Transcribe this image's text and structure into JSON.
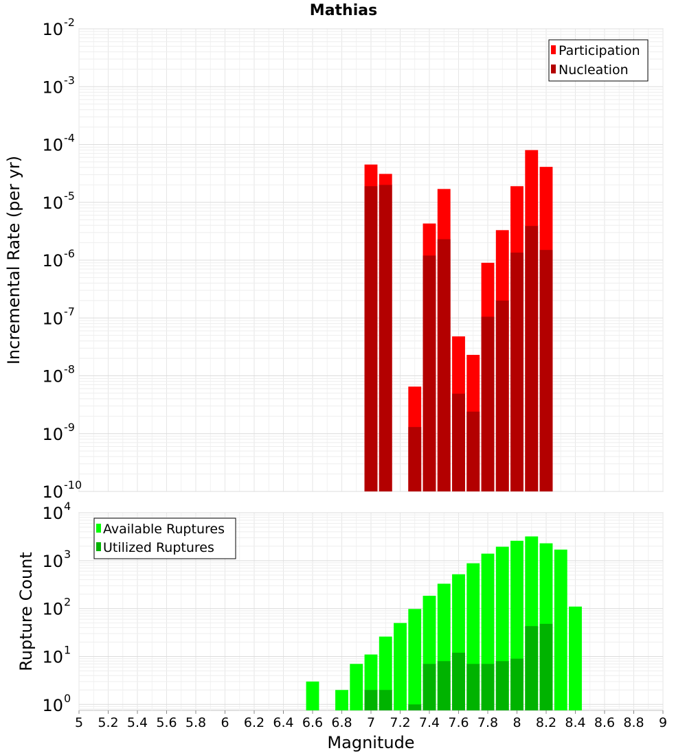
{
  "chart_data": [
    {
      "type": "bar",
      "title": "Mathias",
      "ylabel": "Incremental Rate (per yr)",
      "yscale": "log",
      "ylim": [
        1e-10,
        0.01
      ],
      "xlim": [
        5,
        9
      ],
      "bin_width": 0.1,
      "grid": true,
      "legend_position": "top-right",
      "y_tick_exponents": [
        "-10",
        "-9",
        "-8",
        "-7",
        "-6",
        "-5",
        "-4",
        "-3",
        "-2"
      ],
      "series": [
        {
          "name": "Participation",
          "color": "#ff0000",
          "x": [
            7.0,
            7.1,
            7.3,
            7.4,
            7.5,
            7.6,
            7.7,
            7.8,
            7.9,
            8.0,
            8.1,
            8.2
          ],
          "values": [
            4.5e-05,
            3.1e-05,
            6.5e-09,
            4.3e-06,
            1.7e-05,
            4.8e-08,
            2.3e-08,
            9e-07,
            3.3e-06,
            1.9e-05,
            8e-05,
            4.1e-05
          ]
        },
        {
          "name": "Nucleation",
          "color": "#b30000",
          "x": [
            7.0,
            7.1,
            7.3,
            7.4,
            7.5,
            7.6,
            7.7,
            7.8,
            7.9,
            8.0,
            8.1,
            8.2
          ],
          "values": [
            1.9e-05,
            2e-05,
            1.3e-09,
            1.2e-06,
            2.3e-06,
            4.9e-09,
            2.4e-09,
            1.05e-07,
            2e-07,
            1.35e-06,
            3.9e-06,
            1.5e-06
          ]
        }
      ]
    },
    {
      "type": "bar",
      "xlabel": "Magnitude",
      "ylabel": "Rupture Count",
      "yscale": "log",
      "ylim": [
        0.75,
        10000
      ],
      "xlim": [
        5,
        9
      ],
      "bin_width": 0.1,
      "grid": true,
      "legend_position": "top-left",
      "y_tick_exponents": [
        "0",
        "1",
        "2",
        "3",
        "4"
      ],
      "x_ticks": [
        "5",
        "5.2",
        "5.4",
        "5.6",
        "5.8",
        "6",
        "6.2",
        "6.4",
        "6.6",
        "6.8",
        "7",
        "7.2",
        "7.4",
        "7.6",
        "7.8",
        "8",
        "8.2",
        "8.4",
        "8.6",
        "8.8",
        "9"
      ],
      "series": [
        {
          "name": "Available Ruptures",
          "color": "#00ff00",
          "x": [
            6.6,
            6.8,
            6.9,
            7.0,
            7.1,
            7.2,
            7.3,
            7.4,
            7.5,
            7.6,
            7.7,
            7.8,
            7.9,
            8.0,
            8.1,
            8.2,
            8.3,
            8.4
          ],
          "values": [
            3,
            2,
            7,
            11,
            26,
            50,
            98,
            185,
            330,
            520,
            880,
            1400,
            1950,
            2600,
            3200,
            2300,
            1700,
            110
          ]
        },
        {
          "name": "Utilized Ruptures",
          "color": "#00b300",
          "x": [
            7.0,
            7.1,
            7.3,
            7.4,
            7.5,
            7.6,
            7.7,
            7.8,
            7.9,
            8.0,
            8.1,
            8.2
          ],
          "values": [
            2,
            2,
            1,
            7,
            8,
            12,
            7,
            7,
            8,
            9,
            43,
            48
          ]
        }
      ]
    }
  ]
}
